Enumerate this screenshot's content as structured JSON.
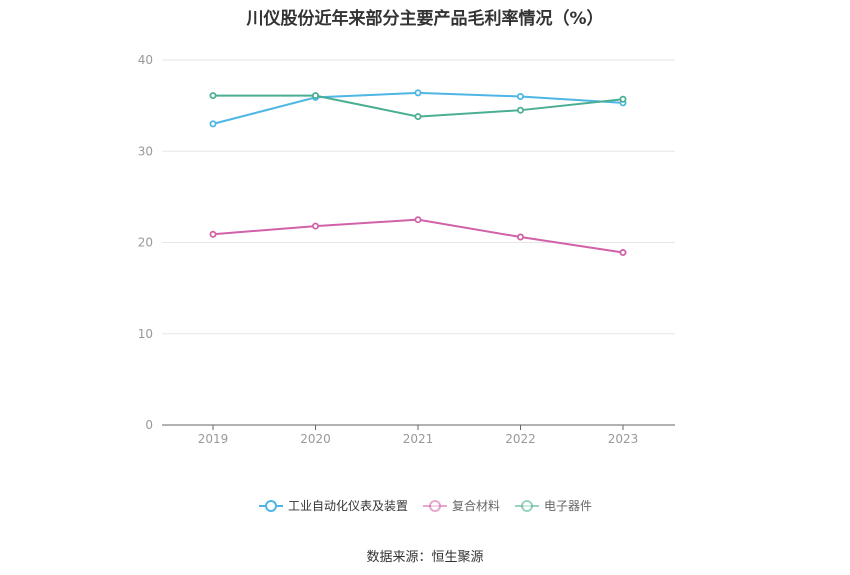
{
  "title": "川仪股份近年来部分主要产品毛利率情况（%）",
  "source": "数据来源：恒生聚源",
  "chart_data": {
    "type": "line",
    "categories": [
      "2019",
      "2020",
      "2021",
      "2022",
      "2023"
    ],
    "ylim": [
      0,
      40
    ],
    "yticks": [
      0,
      10,
      20,
      30,
      40
    ],
    "grid": true,
    "legend_position": "bottom",
    "series": [
      {
        "name": "工业自动化仪表及装置",
        "color": "#4db6e4",
        "values": [
          33.0,
          35.9,
          36.4,
          36.0,
          35.3
        ]
      },
      {
        "name": "复合材料",
        "color": "#d262a8",
        "values": [
          20.9,
          21.8,
          22.5,
          20.6,
          18.9
        ]
      },
      {
        "name": "电子器件",
        "color": "#4aaf92",
        "values": [
          36.1,
          36.1,
          33.8,
          34.5,
          35.7
        ]
      }
    ]
  }
}
